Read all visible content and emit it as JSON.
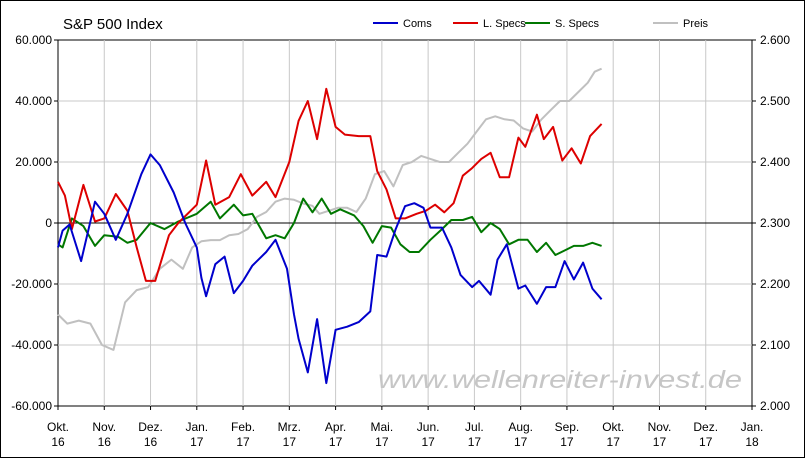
{
  "chart_data": {
    "type": "line",
    "title": "S&P 500 Index",
    "watermark": "www.wellenreiter-invest.de",
    "xlabel": "",
    "ylabel": "",
    "x_categories": [
      "Okt. 16",
      "Nov. 16",
      "Dez. 16",
      "Jan. 17",
      "Feb. 17",
      "Mrz. 17",
      "Apr. 17",
      "Mai. 17",
      "Jun. 17",
      "Jul. 17",
      "Aug. 17",
      "Sep. 17",
      "Okt. 17",
      "Nov. 17",
      "Dez. 17",
      "Jan. 18"
    ],
    "x_tick_labels": [
      [
        "Okt.",
        "16"
      ],
      [
        "Nov.",
        "16"
      ],
      [
        "Dez.",
        "16"
      ],
      [
        "Jan.",
        "17"
      ],
      [
        "Feb.",
        "17"
      ],
      [
        "Mrz.",
        "17"
      ],
      [
        "Apr.",
        "17"
      ],
      [
        "Mai.",
        "17"
      ],
      [
        "Jun.",
        "17"
      ],
      [
        "Jul.",
        "17"
      ],
      [
        "Aug.",
        "17"
      ],
      [
        "Sep.",
        "17"
      ],
      [
        "Okt.",
        "17"
      ],
      [
        "Nov.",
        "17"
      ],
      [
        "Dez.",
        "17"
      ],
      [
        "Jan.",
        "18"
      ]
    ],
    "x_range": [
      0,
      15
    ],
    "ylim_left": [
      -60000,
      60000
    ],
    "yticks_left": [
      -60000,
      -40000,
      -20000,
      0,
      20000,
      40000,
      60000
    ],
    "ytick_labels_left": [
      "-60.000",
      "-40.000",
      "-20.000",
      "0",
      "20.000",
      "40.000",
      "60.000"
    ],
    "ylim_right": [
      2000,
      2600
    ],
    "yticks_right": [
      2000,
      2100,
      2200,
      2300,
      2400,
      2500,
      2600
    ],
    "ytick_labels_right": [
      "2.000",
      "2.100",
      "2.200",
      "2.300",
      "2.400",
      "2.500",
      "2.600"
    ],
    "grid": true,
    "legend_position": "top",
    "series": [
      {
        "name": "Coms",
        "color": "#0000cc",
        "axis": "left",
        "points": [
          [
            0,
            -8000
          ],
          [
            0.1,
            -2500
          ],
          [
            0.25,
            -500
          ],
          [
            0.5,
            -12500
          ],
          [
            0.8,
            7000
          ],
          [
            1,
            3000
          ],
          [
            1.25,
            -5500
          ],
          [
            1.5,
            3000
          ],
          [
            1.8,
            16000
          ],
          [
            2,
            22500
          ],
          [
            2.2,
            19000
          ],
          [
            2.5,
            10000
          ],
          [
            2.75,
            0
          ],
          [
            3,
            -8000
          ],
          [
            3.1,
            -18000
          ],
          [
            3.2,
            -24000
          ],
          [
            3.4,
            -13500
          ],
          [
            3.6,
            -11000
          ],
          [
            3.8,
            -23000
          ],
          [
            4,
            -19000
          ],
          [
            4.2,
            -14000
          ],
          [
            4.5,
            -9500
          ],
          [
            4.7,
            -5500
          ],
          [
            4.95,
            -15000
          ],
          [
            5.1,
            -30000
          ],
          [
            5.2,
            -38000
          ],
          [
            5.4,
            -49000
          ],
          [
            5.6,
            -31500
          ],
          [
            5.8,
            -52500
          ],
          [
            6,
            -35000
          ],
          [
            6.25,
            -34000
          ],
          [
            6.5,
            -32500
          ],
          [
            6.75,
            -29000
          ],
          [
            6.9,
            -10500
          ],
          [
            7.1,
            -11000
          ],
          [
            7.3,
            -2000
          ],
          [
            7.5,
            5500
          ],
          [
            7.7,
            6500
          ],
          [
            7.9,
            5000
          ],
          [
            8.05,
            -1500
          ],
          [
            8.3,
            -1500
          ],
          [
            8.5,
            -8000
          ],
          [
            8.7,
            -17000
          ],
          [
            8.95,
            -21000
          ],
          [
            9.1,
            -19000
          ],
          [
            9.35,
            -23500
          ],
          [
            9.5,
            -12000
          ],
          [
            9.7,
            -7000
          ],
          [
            9.95,
            -21500
          ],
          [
            10.1,
            -20500
          ],
          [
            10.35,
            -26500
          ],
          [
            10.55,
            -21000
          ],
          [
            10.75,
            -21000
          ],
          [
            10.95,
            -12500
          ],
          [
            11.15,
            -18500
          ],
          [
            11.35,
            -13000
          ],
          [
            11.55,
            -21500
          ],
          [
            11.75,
            -25000
          ]
        ]
      },
      {
        "name": "L. Specs",
        "color": "#dd0000",
        "axis": "left",
        "points": [
          [
            0,
            13500
          ],
          [
            0.15,
            9000
          ],
          [
            0.3,
            -2000
          ],
          [
            0.55,
            12500
          ],
          [
            0.8,
            500
          ],
          [
            1,
            1500
          ],
          [
            1.25,
            9500
          ],
          [
            1.5,
            4000
          ],
          [
            1.7,
            -8000
          ],
          [
            1.9,
            -19000
          ],
          [
            2.1,
            -19000
          ],
          [
            2.4,
            -4000
          ],
          [
            2.6,
            0
          ],
          [
            3,
            6000
          ],
          [
            3.2,
            20500
          ],
          [
            3.4,
            6000
          ],
          [
            3.7,
            8500
          ],
          [
            3.95,
            16000
          ],
          [
            4.2,
            9000
          ],
          [
            4.5,
            13500
          ],
          [
            4.7,
            8500
          ],
          [
            5,
            20000
          ],
          [
            5.2,
            33500
          ],
          [
            5.4,
            40000
          ],
          [
            5.6,
            27500
          ],
          [
            5.8,
            44000
          ],
          [
            6,
            31500
          ],
          [
            6.2,
            29000
          ],
          [
            6.5,
            28500
          ],
          [
            6.75,
            28500
          ],
          [
            6.9,
            17000
          ],
          [
            7.1,
            11000
          ],
          [
            7.3,
            1500
          ],
          [
            7.5,
            1500
          ],
          [
            7.75,
            3000
          ],
          [
            7.95,
            4000
          ],
          [
            8.15,
            6000
          ],
          [
            8.35,
            3500
          ],
          [
            8.55,
            6500
          ],
          [
            8.75,
            15500
          ],
          [
            8.95,
            18000
          ],
          [
            9.15,
            21000
          ],
          [
            9.35,
            23000
          ],
          [
            9.55,
            15000
          ],
          [
            9.75,
            15000
          ],
          [
            9.95,
            28000
          ],
          [
            10.1,
            25000
          ],
          [
            10.35,
            35500
          ],
          [
            10.5,
            27500
          ],
          [
            10.7,
            31500
          ],
          [
            10.9,
            20500
          ],
          [
            11.1,
            24500
          ],
          [
            11.3,
            19500
          ],
          [
            11.5,
            28500
          ],
          [
            11.75,
            32500
          ]
        ]
      },
      {
        "name": "S. Specs",
        "color": "#007700",
        "axis": "left",
        "points": [
          [
            0,
            -7000
          ],
          [
            0.1,
            -8000
          ],
          [
            0.3,
            1500
          ],
          [
            0.55,
            -1000
          ],
          [
            0.8,
            -7500
          ],
          [
            1,
            -4000
          ],
          [
            1.3,
            -4500
          ],
          [
            1.5,
            -6500
          ],
          [
            1.7,
            -5500
          ],
          [
            2,
            0
          ],
          [
            2.3,
            -2000
          ],
          [
            2.6,
            500
          ],
          [
            3,
            3000
          ],
          [
            3.3,
            7000
          ],
          [
            3.5,
            1500
          ],
          [
            3.8,
            6000
          ],
          [
            4,
            2500
          ],
          [
            4.2,
            3000
          ],
          [
            4.5,
            -5000
          ],
          [
            4.7,
            -4000
          ],
          [
            4.9,
            -5000
          ],
          [
            5.1,
            0
          ],
          [
            5.3,
            8000
          ],
          [
            5.5,
            3500
          ],
          [
            5.7,
            8000
          ],
          [
            5.9,
            3000
          ],
          [
            6.1,
            4500
          ],
          [
            6.4,
            2500
          ],
          [
            6.6,
            -1000
          ],
          [
            6.8,
            -6500
          ],
          [
            7,
            -1000
          ],
          [
            7.2,
            -1500
          ],
          [
            7.4,
            -7000
          ],
          [
            7.6,
            -9500
          ],
          [
            7.8,
            -9500
          ],
          [
            8.05,
            -5500
          ],
          [
            8.3,
            -2000
          ],
          [
            8.5,
            1000
          ],
          [
            8.75,
            1000
          ],
          [
            8.95,
            2000
          ],
          [
            9.15,
            -3000
          ],
          [
            9.35,
            0
          ],
          [
            9.55,
            -2000
          ],
          [
            9.75,
            -7000
          ],
          [
            9.95,
            -5500
          ],
          [
            10.15,
            -5500
          ],
          [
            10.35,
            -9500
          ],
          [
            10.55,
            -6500
          ],
          [
            10.75,
            -10500
          ],
          [
            10.95,
            -9000
          ],
          [
            11.15,
            -7500
          ],
          [
            11.35,
            -7500
          ],
          [
            11.55,
            -6500
          ],
          [
            11.75,
            -7500
          ]
        ]
      },
      {
        "name": "Preis",
        "color": "#c0c0c0",
        "axis": "right",
        "points": [
          [
            0,
            2150
          ],
          [
            0.2,
            2135
          ],
          [
            0.45,
            2140
          ],
          [
            0.7,
            2135
          ],
          [
            0.95,
            2100
          ],
          [
            1.2,
            2092
          ],
          [
            1.45,
            2170
          ],
          [
            1.7,
            2190
          ],
          [
            1.95,
            2195
          ],
          [
            2.2,
            2225
          ],
          [
            2.45,
            2240
          ],
          [
            2.7,
            2225
          ],
          [
            2.9,
            2260
          ],
          [
            3.1,
            2270
          ],
          [
            3.3,
            2272
          ],
          [
            3.5,
            2272
          ],
          [
            3.7,
            2280
          ],
          [
            3.9,
            2282
          ],
          [
            4.1,
            2290
          ],
          [
            4.3,
            2310
          ],
          [
            4.5,
            2318
          ],
          [
            4.7,
            2335
          ],
          [
            4.9,
            2340
          ],
          [
            5.1,
            2338
          ],
          [
            5.3,
            2332
          ],
          [
            5.5,
            2328
          ],
          [
            5.65,
            2315
          ],
          [
            5.85,
            2320
          ],
          [
            6.05,
            2325
          ],
          [
            6.25,
            2325
          ],
          [
            6.45,
            2318
          ],
          [
            6.65,
            2340
          ],
          [
            6.85,
            2380
          ],
          [
            7.05,
            2385
          ],
          [
            7.25,
            2360
          ],
          [
            7.45,
            2395
          ],
          [
            7.65,
            2400
          ],
          [
            7.85,
            2410
          ],
          [
            8.05,
            2405
          ],
          [
            8.25,
            2400
          ],
          [
            8.45,
            2400
          ],
          [
            8.65,
            2415
          ],
          [
            8.85,
            2430
          ],
          [
            9.05,
            2450
          ],
          [
            9.25,
            2470
          ],
          [
            9.45,
            2475
          ],
          [
            9.65,
            2470
          ],
          [
            9.85,
            2468
          ],
          [
            10.05,
            2455
          ],
          [
            10.25,
            2450
          ],
          [
            10.45,
            2470
          ],
          [
            10.65,
            2485
          ],
          [
            10.85,
            2500
          ],
          [
            11.05,
            2500
          ],
          [
            11.25,
            2515
          ],
          [
            11.45,
            2530
          ],
          [
            11.6,
            2548
          ],
          [
            11.75,
            2553
          ]
        ]
      }
    ]
  }
}
